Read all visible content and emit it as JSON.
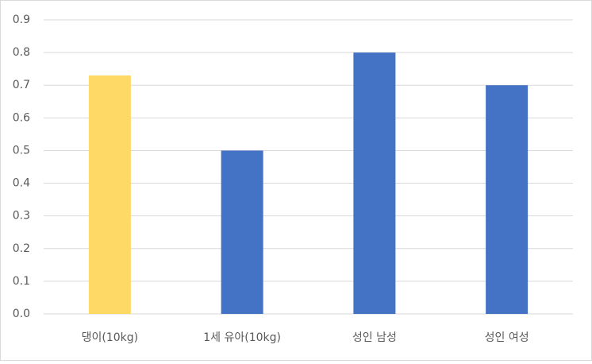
{
  "chart_data": {
    "type": "bar",
    "categories": [
      "댕이(10kg)",
      "1세 유아(10kg)",
      "성인 남성",
      "성인 여성"
    ],
    "values": [
      0.73,
      0.5,
      0.8,
      0.7
    ],
    "colors": [
      "#ffd966",
      "#4472c4",
      "#4472c4",
      "#4472c4"
    ],
    "ylim": [
      0,
      0.9
    ],
    "yticks": [
      {
        "value": 0,
        "label": "0.0"
      },
      0.1,
      0.2,
      0.3,
      0.4,
      0.5,
      0.6,
      0.7,
      0.8,
      0.9
    ],
    "grid": true
  }
}
